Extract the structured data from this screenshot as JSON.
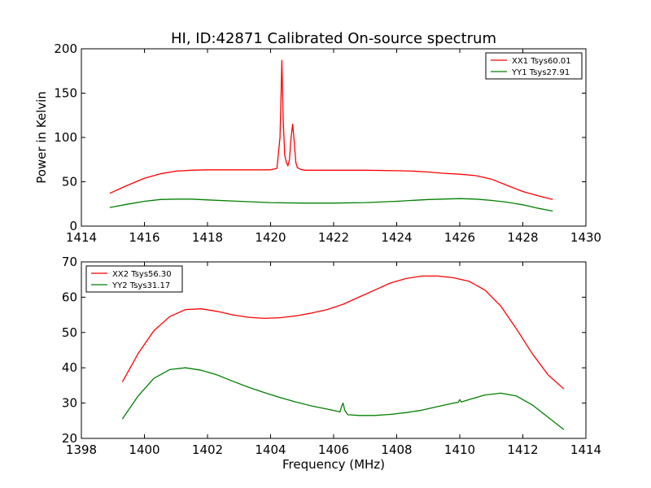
{
  "chart_data": [
    {
      "type": "line",
      "title": "HI, ID:42871 Calibrated On-source spectrum",
      "xlabel": "",
      "ylabel": "Power in Kelvin",
      "xlim": [
        1414,
        1430
      ],
      "ylim": [
        0,
        200
      ],
      "xticks": [
        1414,
        1416,
        1418,
        1420,
        1422,
        1424,
        1426,
        1428,
        1430
      ],
      "yticks": [
        0,
        50,
        100,
        150,
        200
      ],
      "grid": false,
      "legend_position": "top-right",
      "series": [
        {
          "name": "XX1 Tsys60.01",
          "color": "#ff0000",
          "x": [
            1414.9,
            1415.4,
            1416.0,
            1416.5,
            1417.0,
            1417.5,
            1418.0,
            1419.0,
            1420.0,
            1420.2,
            1420.3,
            1420.36,
            1420.4,
            1420.45,
            1420.5,
            1420.55,
            1420.6,
            1420.65,
            1420.7,
            1420.75,
            1420.8,
            1420.85,
            1420.95,
            1421.1,
            1421.5,
            1422.0,
            1423.0,
            1424.0,
            1424.5,
            1425.0,
            1425.5,
            1426.0,
            1426.5,
            1427.0,
            1427.5,
            1428.0,
            1428.5,
            1428.95
          ],
          "y": [
            37,
            45,
            54,
            59,
            62,
            63,
            63.5,
            63.5,
            63.5,
            65,
            100,
            187,
            120,
            80,
            72,
            68,
            75,
            100,
            115,
            95,
            72,
            66,
            64,
            63,
            63,
            63,
            63,
            62.5,
            62,
            61,
            59.5,
            58.5,
            57,
            53,
            46,
            39,
            34,
            30
          ]
        },
        {
          "name": "YY1 Tsys27.91",
          "color": "#008000",
          "x": [
            1414.9,
            1415.5,
            1416.0,
            1416.5,
            1417.0,
            1417.5,
            1418.0,
            1419.0,
            1420.0,
            1421.0,
            1422.0,
            1423.0,
            1424.0,
            1425.0,
            1426.0,
            1426.5,
            1427.0,
            1427.5,
            1428.0,
            1428.5,
            1428.95
          ],
          "y": [
            21,
            25,
            28,
            30,
            30.5,
            30.5,
            29.5,
            28,
            26.5,
            26,
            26,
            26.5,
            28,
            30,
            31,
            30.5,
            29,
            27,
            24,
            20,
            17
          ]
        }
      ]
    },
    {
      "type": "line",
      "title": "",
      "xlabel": "Frequency (MHz)",
      "ylabel": "",
      "xlim": [
        1398,
        1414
      ],
      "ylim": [
        20,
        70
      ],
      "xticks": [
        1398,
        1400,
        1402,
        1404,
        1406,
        1408,
        1410,
        1412,
        1414
      ],
      "yticks": [
        20,
        30,
        40,
        50,
        60,
        70
      ],
      "grid": false,
      "legend_position": "top-left",
      "series": [
        {
          "name": "XX2 Tsys56.30",
          "color": "#ff0000",
          "x": [
            1399.3,
            1399.8,
            1400.3,
            1400.8,
            1401.3,
            1401.8,
            1402.3,
            1402.8,
            1403.3,
            1403.8,
            1404.3,
            1404.8,
            1405.3,
            1405.8,
            1406.3,
            1406.8,
            1407.3,
            1407.8,
            1408.3,
            1408.8,
            1409.3,
            1409.8,
            1410.3,
            1410.8,
            1411.3,
            1411.8,
            1412.3,
            1412.8,
            1413.3
          ],
          "y": [
            36,
            44,
            50.5,
            54.5,
            56.5,
            56.7,
            56,
            55,
            54.3,
            54,
            54.2,
            54.7,
            55.5,
            56.5,
            58,
            60,
            62,
            64,
            65.3,
            66,
            66,
            65.5,
            64.5,
            62,
            57.5,
            51,
            44,
            38,
            34
          ]
        },
        {
          "name": "YY2 Tsys31.17",
          "color": "#008000",
          "x": [
            1399.3,
            1399.8,
            1400.3,
            1400.8,
            1401.3,
            1401.8,
            1402.3,
            1402.8,
            1403.3,
            1403.8,
            1404.3,
            1404.8,
            1405.3,
            1405.8,
            1406.2,
            1406.25,
            1406.3,
            1406.35,
            1406.45,
            1406.8,
            1407.3,
            1407.8,
            1408.3,
            1408.8,
            1409.3,
            1409.8,
            1409.95,
            1410.0,
            1410.05,
            1410.3,
            1410.8,
            1411.3,
            1411.8,
            1412.3,
            1412.8,
            1413.3
          ],
          "y": [
            25.5,
            32,
            37,
            39.5,
            40,
            39.3,
            38,
            36.2,
            34.5,
            33,
            31.6,
            30.3,
            29.2,
            28.3,
            27.5,
            29,
            30,
            28,
            26.7,
            26.5,
            26.5,
            26.8,
            27.3,
            28,
            29,
            30,
            30.2,
            31,
            30.3,
            31,
            32.3,
            32.8,
            32,
            29.5,
            26,
            22.5
          ]
        }
      ]
    }
  ]
}
